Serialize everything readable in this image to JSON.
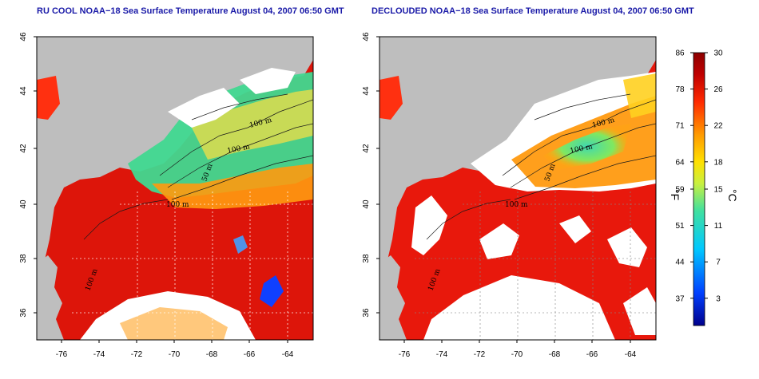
{
  "titles": {
    "left": "RU COOL NOAA−18 Sea Surface Temperature August 04, 2007 06:50 GMT",
    "right": "DECLOUDED NOAA−18 Sea Surface Temperature August 04, 2007 06:50 GMT"
  },
  "axes": {
    "lat_ticks": [
      "46",
      "44",
      "42",
      "40",
      "38",
      "36"
    ],
    "lon_ticks": [
      "-76",
      "-74",
      "-72",
      "-70",
      "-68",
      "-66",
      "-64"
    ]
  },
  "contours": {
    "labels": [
      "100 m",
      "100 m",
      "50 m",
      "100 m",
      "100 m"
    ]
  },
  "colorbar": {
    "fahrenheit_label": "°F",
    "celsius_label": "°C",
    "fahrenheit_ticks": [
      "86",
      "78",
      "71",
      "64",
      "59",
      "51",
      "44",
      "37"
    ],
    "celsius_ticks": [
      "30",
      "26",
      "22",
      "18",
      "15",
      "11",
      "7",
      "3"
    ],
    "range_c": [
      0,
      30
    ],
    "colors": [
      "#00008c",
      "#0040ff",
      "#00c8ff",
      "#40e0a0",
      "#c8f040",
      "#ffe000",
      "#ff9a00",
      "#ff2a00",
      "#c00000",
      "#8c0000"
    ]
  },
  "map_colors": {
    "land": "#bebebe",
    "cloud": "#ffffff",
    "warm": "#e8180c",
    "warm_dark": "#c00808",
    "mid": "#ff9a10",
    "cool": "#50e0a8"
  }
}
